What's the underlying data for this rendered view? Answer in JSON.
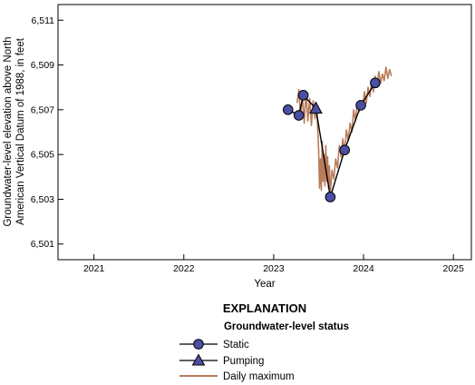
{
  "chart_data": {
    "type": "line",
    "xlabel": "Year",
    "ylabel_lines": [
      "Groundwater-level elevation above North",
      "American Vertical Datum of 1988, in feet"
    ],
    "xlim": [
      2020.6,
      2025.2
    ],
    "ylim": [
      6500.3,
      6511.7
    ],
    "x_ticks": [
      2021,
      2022,
      2023,
      2024,
      2025
    ],
    "x_tick_labels": [
      "2021",
      "2022",
      "2023",
      "2024",
      "2025"
    ],
    "y_ticks": [
      6501,
      6503,
      6505,
      6507,
      6509,
      6511
    ],
    "y_tick_labels": [
      "6,501",
      "6,503",
      "6,505",
      "6,507",
      "6,509",
      "6,511"
    ],
    "grid": false,
    "series": [
      {
        "name": "Static",
        "color": "#4b4fa3",
        "marker": "circle",
        "x": [
          2023.16,
          2023.28,
          2023.33,
          2023.63,
          2023.79,
          2023.97,
          2024.13
        ],
        "y": [
          6507.0,
          6506.75,
          6507.65,
          6503.1,
          6505.2,
          6507.2,
          6508.2
        ]
      },
      {
        "name": "Pumping",
        "color": "#4b4fa3",
        "marker": "triangle",
        "x": [
          2023.47
        ],
        "y": [
          6507.05
        ]
      },
      {
        "name": "Daily maximum",
        "color": "#b87c5a",
        "marker": "none",
        "x": [
          2023.26,
          2023.28,
          2023.3,
          2023.32,
          2023.34,
          2023.36,
          2023.38,
          2023.4,
          2023.42,
          2023.44,
          2023.46,
          2023.48,
          2023.5,
          2023.51,
          2023.52,
          2023.53,
          2023.54,
          2023.55,
          2023.56,
          2023.57,
          2023.58,
          2023.59,
          2023.6,
          2023.61,
          2023.62,
          2023.63,
          2023.65,
          2023.67,
          2023.69,
          2023.71,
          2023.73,
          2023.75,
          2023.77,
          2023.79,
          2023.81,
          2023.83,
          2023.85,
          2023.87,
          2023.89,
          2023.91,
          2023.93,
          2023.95,
          2023.97,
          2023.99,
          2024.01,
          2024.03,
          2024.05,
          2024.07,
          2024.09,
          2024.11,
          2024.13,
          2024.15,
          2024.17,
          2024.19,
          2024.21,
          2024.23,
          2024.25,
          2024.27,
          2024.29,
          2024.31
        ],
        "y": [
          6507.3,
          6507.9,
          6506.6,
          6507.7,
          6506.4,
          6507.8,
          6506.5,
          6507.5,
          6506.3,
          6507.4,
          6506.6,
          6507.0,
          6505.2,
          6503.5,
          6504.8,
          6503.4,
          6505.6,
          6503.8,
          6505.0,
          6503.6,
          6505.4,
          6503.8,
          6504.9,
          6503.5,
          6504.5,
          6503.3,
          6504.3,
          6503.9,
          6504.8,
          6504.4,
          6505.4,
          6504.9,
          6505.7,
          6505.1,
          6506.1,
          6505.6,
          6506.4,
          6506.0,
          6507.0,
          6506.5,
          6507.3,
          6506.9,
          6507.4,
          6507.1,
          6507.8,
          6507.3,
          6508.0,
          6507.6,
          6508.3,
          6507.8,
          6508.5,
          6508.0,
          6508.7,
          6508.2,
          6508.6,
          6508.3,
          6508.9,
          6508.4,
          6508.8,
          6508.5
        ]
      }
    ],
    "legend": {
      "title": "EXPLANATION",
      "subtitle": "Groundwater-level status",
      "items": [
        "Static",
        "Pumping",
        "Daily maximum"
      ],
      "placement": "bottom-center"
    },
    "colors": {
      "marker_fill": "#4b4fa3",
      "connecting_line": "#000000",
      "daily_max": "#b87c5a"
    }
  }
}
